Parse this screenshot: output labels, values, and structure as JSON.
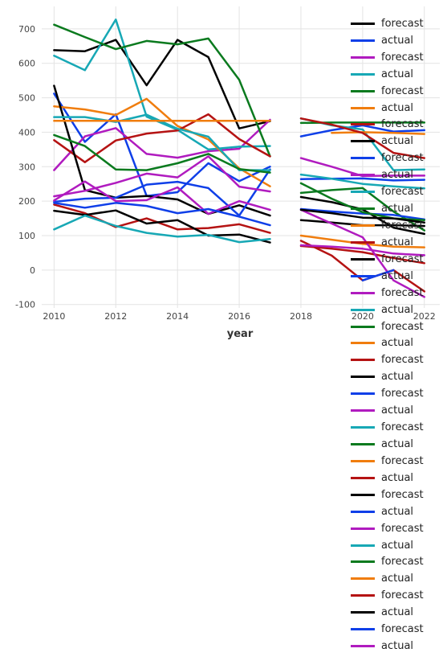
{
  "chart_data": {
    "type": "line",
    "xlabel": "year",
    "ylabel": "",
    "xlim": [
      2009.6,
      2022.5
    ],
    "ylim": [
      -110,
      765
    ],
    "x_ticks": [
      2010,
      2012,
      2014,
      2016,
      2018,
      2020,
      2022
    ],
    "y_ticks": [
      -100,
      0,
      100,
      200,
      300,
      400,
      500,
      600,
      700
    ],
    "grid": true,
    "legend_position": "right",
    "palette": [
      "#000000",
      "#0f3fe8",
      "#b01bbf",
      "#17a8b5",
      "#0a7a1e",
      "#f07d0e",
      "#b51313"
    ],
    "seg1_x": [
      2010,
      2011,
      2012,
      2013,
      2014,
      2015,
      2016,
      2017
    ],
    "seg2_x": [
      2018,
      2019,
      2020,
      2021,
      2022
    ],
    "series": [
      {
        "name": "forecast",
        "color": "#000000",
        "seg1": [
          638,
          635,
          668,
          536,
          668,
          618,
          411,
          432
        ],
        "seg2": [
          null,
          null,
          null,
          null,
          null
        ]
      },
      {
        "name": "actual",
        "color": "#0f3fe8",
        "seg1": [
          512,
          372,
          452,
          215,
          226,
          310,
          258,
          300
        ],
        "seg2": [
          388,
          406,
          420,
          402,
          406
        ]
      },
      {
        "name": "forecast",
        "color": "#b01bbf",
        "seg1": [
          290,
          388,
          412,
          337,
          326,
          345,
          352,
          436
        ],
        "seg2": [
          325,
          300,
          273,
          274,
          274
        ]
      },
      {
        "name": "actual",
        "color": "#17a8b5",
        "seg1": [
          622,
          580,
          727,
          445,
          407,
          350,
          358,
          360
        ],
        "seg2": [
          440,
          420,
          408,
          290,
          292
        ]
      },
      {
        "name": "forecast",
        "color": "#0a7a1e",
        "seg1": [
          712,
          676,
          641,
          665,
          655,
          672,
          552,
          330
        ],
        "seg2": [
          427,
          428,
          428,
          428,
          428
        ]
      },
      {
        "name": "actual",
        "color": "#f07d0e",
        "seg1": [
          475,
          466,
          450,
          497,
          418,
          379,
          295,
          243
        ],
        "seg2": [
          null,
          398,
          400,
          398,
          395
        ]
      },
      {
        "name": "forecast",
        "color": "#b51313",
        "seg1": [
          377,
          313,
          376,
          396,
          405,
          452,
          380,
          330
        ],
        "seg2": [
          440,
          422,
          398,
          340,
          325
        ]
      },
      {
        "name": "actual",
        "color": "#000000",
        "seg1": [
          535,
          232,
          210,
          215,
          205,
          163,
          188,
          158
        ],
        "seg2": [
          212,
          197,
          176,
          123,
          105
        ]
      },
      {
        "name": "forecast",
        "color": "#0f3fe8",
        "seg1": [
          198,
          207,
          210,
          248,
          256,
          238,
          158,
          292
        ],
        "seg2": [
          264,
          265,
          266,
          260,
          262
        ]
      },
      {
        "name": "actual",
        "color": "#b01bbf",
        "seg1": [
          202,
          257,
          200,
          203,
          240,
          163,
          200,
          175
        ],
        "seg2": [
          null,
          null,
          null,
          null,
          null
        ]
      },
      {
        "name": "forecast",
        "color": "#17a8b5",
        "seg1": [
          444,
          444,
          430,
          451,
          410,
          387,
          290,
          290
        ],
        "seg2": [
          277,
          265,
          250,
          243,
          237
        ]
      },
      {
        "name": "actual",
        "color": "#0a7a1e",
        "seg1": [
          392,
          360,
          292,
          290,
          310,
          337,
          293,
          283
        ],
        "seg2": [
          224,
          232,
          238,
          170,
          115
        ]
      },
      {
        "name": "forecast",
        "color": "#f07d0e",
        "seg1": [
          433,
          433,
          433,
          433,
          433,
          433,
          433,
          433
        ],
        "seg2": [
          100,
          88,
          76,
          68,
          66
        ]
      },
      {
        "name": "actual",
        "color": "#b51313",
        "seg1": [
          190,
          165,
          125,
          150,
          118,
          122,
          133,
          108
        ],
        "seg2": [
          70,
          62,
          52,
          35,
          20
        ]
      },
      {
        "name": "forecast",
        "color": "#000000",
        "seg1": [
          172,
          160,
          173,
          135,
          145,
          100,
          103,
          80
        ],
        "seg2": [
          145,
          138,
          130,
          130,
          128
        ]
      },
      {
        "name": "actual",
        "color": "#0f3fe8",
        "seg1": [
          195,
          181,
          195,
          186,
          165,
          177,
          155,
          130
        ],
        "seg2": [
          177,
          170,
          164,
          160,
          147
        ]
      },
      {
        "name": "forecast",
        "color": "#b01bbf",
        "seg1": [
          214,
          230,
          253,
          280,
          269,
          330,
          242,
          228
        ],
        "seg2": [
          175,
          135,
          95,
          -30,
          -78
        ]
      },
      {
        "name": "actual",
        "color": "#17a8b5",
        "seg1": [
          118,
          158,
          128,
          108,
          97,
          102,
          81,
          90
        ],
        "seg2": [
          null,
          null,
          null,
          null,
          null
        ]
      },
      {
        "name": "forecast",
        "color": "#0a7a1e",
        "seg1": [
          null,
          null,
          null,
          null,
          null,
          null,
          null,
          null
        ],
        "seg2": [
          252,
          207,
          168,
          150,
          145
        ]
      },
      {
        "name": "actual",
        "color": "#f07d0e",
        "seg1": [
          null,
          null,
          null,
          null,
          null,
          null,
          null,
          null
        ],
        "seg2": [
          null,
          null,
          null,
          null,
          null
        ]
      },
      {
        "name": "forecast",
        "color": "#b51313",
        "seg1": [
          null,
          null,
          null,
          null,
          null,
          null,
          null,
          null
        ],
        "seg2": [
          85,
          42,
          -30,
          0,
          -62
        ]
      },
      {
        "name": "actual",
        "color": "#000000",
        "seg1": [
          null,
          null,
          null,
          null,
          null,
          null,
          null,
          null
        ],
        "seg2": [
          175,
          165,
          152,
          150,
          138
        ]
      },
      {
        "name": "forecast",
        "color": "#0f3fe8",
        "seg1": [
          null,
          null,
          null,
          null,
          null,
          null,
          null,
          null
        ],
        "seg2": [
          null,
          null,
          -30,
          0,
          null
        ]
      },
      {
        "name": "actual",
        "color": "#b01bbf",
        "seg1": [
          null,
          null,
          null,
          null,
          null,
          null,
          null,
          null
        ],
        "seg2": [
          72,
          68,
          62,
          48,
          43
        ]
      },
      {
        "name": "forecast",
        "color": "#17a8b5",
        "seg1": [
          null,
          null,
          null,
          null,
          null,
          null,
          null,
          null
        ],
        "seg2": [
          null,
          null,
          null,
          null,
          null
        ]
      },
      {
        "name": "actual",
        "color": "#0a7a1e",
        "seg1": [
          null,
          null,
          null,
          null,
          null,
          null,
          null,
          null
        ],
        "seg2": [
          null,
          null,
          null,
          null,
          null
        ]
      },
      {
        "name": "forecast",
        "color": "#f07d0e",
        "seg1": [
          null,
          null,
          null,
          null,
          null,
          null,
          null,
          null
        ],
        "seg2": [
          null,
          null,
          null,
          null,
          null
        ]
      },
      {
        "name": "actual",
        "color": "#b51313",
        "seg1": [
          null,
          null,
          null,
          null,
          null,
          null,
          null,
          null
        ],
        "seg2": [
          null,
          null,
          null,
          null,
          null
        ]
      },
      {
        "name": "forecast",
        "color": "#000000",
        "seg1": [
          null,
          null,
          null,
          null,
          null,
          null,
          null,
          null
        ],
        "seg2": [
          null,
          null,
          null,
          null,
          null
        ]
      },
      {
        "name": "actual",
        "color": "#0f3fe8",
        "seg1": [
          null,
          null,
          null,
          null,
          null,
          null,
          null,
          null
        ],
        "seg2": [
          null,
          null,
          null,
          null,
          null
        ]
      },
      {
        "name": "forecast",
        "color": "#b01bbf",
        "seg1": [
          null,
          null,
          null,
          null,
          null,
          null,
          null,
          null
        ],
        "seg2": [
          null,
          null,
          null,
          null,
          null
        ]
      },
      {
        "name": "actual",
        "color": "#17a8b5",
        "seg1": [
          null,
          null,
          null,
          null,
          null,
          null,
          null,
          null
        ],
        "seg2": [
          null,
          null,
          null,
          null,
          null
        ]
      },
      {
        "name": "forecast",
        "color": "#0a7a1e",
        "seg1": [
          null,
          null,
          null,
          null,
          null,
          null,
          null,
          null
        ],
        "seg2": [
          null,
          null,
          null,
          null,
          null
        ]
      },
      {
        "name": "actual",
        "color": "#f07d0e",
        "seg1": [
          null,
          null,
          null,
          null,
          null,
          null,
          null,
          null
        ],
        "seg2": [
          null,
          null,
          null,
          null,
          null
        ]
      },
      {
        "name": "forecast",
        "color": "#b51313",
        "seg1": [
          null,
          null,
          null,
          null,
          null,
          null,
          null,
          null
        ],
        "seg2": [
          null,
          null,
          null,
          null,
          null
        ]
      },
      {
        "name": "actual",
        "color": "#000000",
        "seg1": [
          null,
          null,
          null,
          null,
          null,
          null,
          null,
          null
        ],
        "seg2": [
          null,
          null,
          null,
          null,
          null
        ]
      },
      {
        "name": "forecast",
        "color": "#0f3fe8",
        "seg1": [
          null,
          null,
          null,
          null,
          null,
          null,
          null,
          null
        ],
        "seg2": [
          null,
          null,
          null,
          null,
          null
        ]
      },
      {
        "name": "actual",
        "color": "#b01bbf",
        "seg1": [
          null,
          null,
          null,
          null,
          null,
          null,
          null,
          null
        ],
        "seg2": [
          null,
          null,
          null,
          null,
          null
        ]
      }
    ]
  }
}
